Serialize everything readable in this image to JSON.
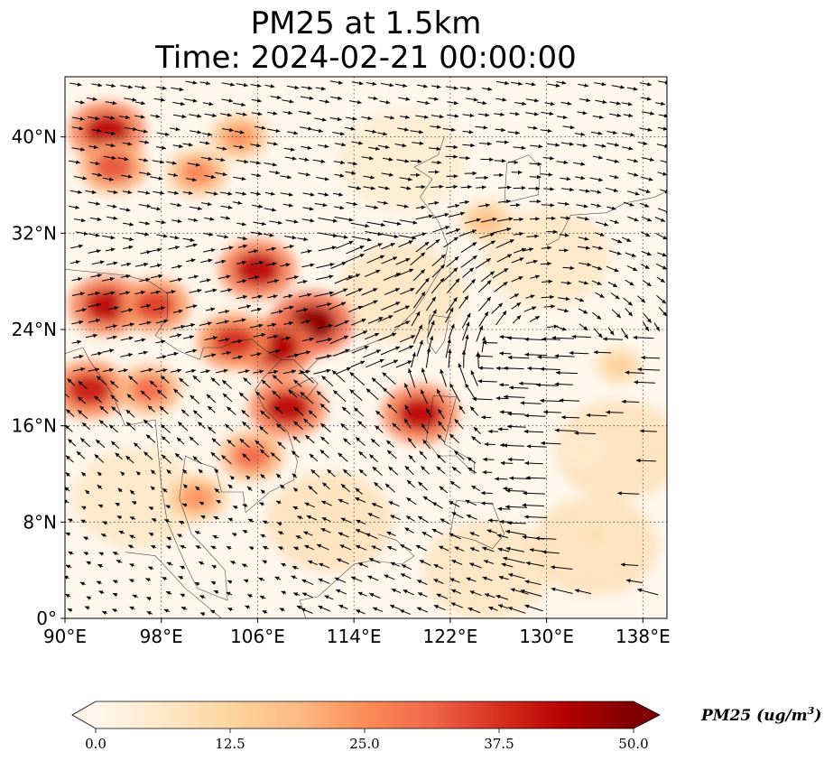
{
  "title_line1": "PM25 at 1.5km",
  "title_line2": "Time: 2024-02-21 00:00:00",
  "chart_data": {
    "type": "heatmap",
    "subtype": "filled contour map with wind vectors",
    "variable": "PM25",
    "units": "ug/m3",
    "colormap": "OrRd",
    "color_range": [
      0,
      50
    ],
    "colorbar_ticks": [
      "0.0",
      "12.5",
      "25.0",
      "37.5",
      "50.0"
    ],
    "colorbar_title": "PM25 (ug/m",
    "colorbar_title_sup": "3",
    "colorbar_title_end": ")",
    "colorbar_extend": "both",
    "colorbar_colors": [
      "#fff7ec",
      "#fee8c8",
      "#fdd49e",
      "#fdbb84",
      "#fc8d59",
      "#ef6548",
      "#d7301f",
      "#b30000",
      "#7f0000"
    ],
    "x_range": [
      90,
      140
    ],
    "y_range": [
      0,
      45
    ],
    "x_ticks": [
      90,
      98,
      106,
      114,
      122,
      130,
      138
    ],
    "x_tick_labels": [
      "90°E",
      "98°E",
      "106°E",
      "114°E",
      "122°E",
      "130°E",
      "138°E"
    ],
    "y_ticks": [
      0,
      8,
      16,
      24,
      32,
      40
    ],
    "y_tick_labels": [
      "0°",
      "8°N",
      "16°N",
      "24°N",
      "32°N",
      "40°N"
    ],
    "grid": "dotted",
    "high_concentration_regions": [
      {
        "lon": 110.5,
        "lat": 24.5,
        "value": 48
      },
      {
        "lon": 106.0,
        "lat": 29.0,
        "value": 42
      },
      {
        "lon": 107.5,
        "lat": 22.5,
        "value": 44
      },
      {
        "lon": 104.0,
        "lat": 23.0,
        "value": 38
      },
      {
        "lon": 93.5,
        "lat": 26.0,
        "value": 42
      },
      {
        "lon": 97.5,
        "lat": 26.0,
        "value": 36
      },
      {
        "lon": 92.0,
        "lat": 19.0,
        "value": 40
      },
      {
        "lon": 97.0,
        "lat": 19.0,
        "value": 30
      },
      {
        "lon": 108.5,
        "lat": 17.5,
        "value": 42
      },
      {
        "lon": 105.5,
        "lat": 13.5,
        "value": 30
      },
      {
        "lon": 101.0,
        "lat": 10.0,
        "value": 24
      },
      {
        "lon": 93.5,
        "lat": 40.5,
        "value": 42
      },
      {
        "lon": 94.0,
        "lat": 37.5,
        "value": 33
      },
      {
        "lon": 101.0,
        "lat": 37.0,
        "value": 26
      },
      {
        "lon": 104.5,
        "lat": 40.0,
        "value": 24
      },
      {
        "lon": 119.5,
        "lat": 17.0,
        "value": 42
      },
      {
        "lon": 125.0,
        "lat": 33.0,
        "value": 18
      },
      {
        "lon": 136.0,
        "lat": 21.0,
        "value": 14
      },
      {
        "lon": 134.0,
        "lat": 7.0,
        "value": 10
      },
      {
        "lon": 133.0,
        "lat": 14.0,
        "value": 7
      }
    ]
  }
}
